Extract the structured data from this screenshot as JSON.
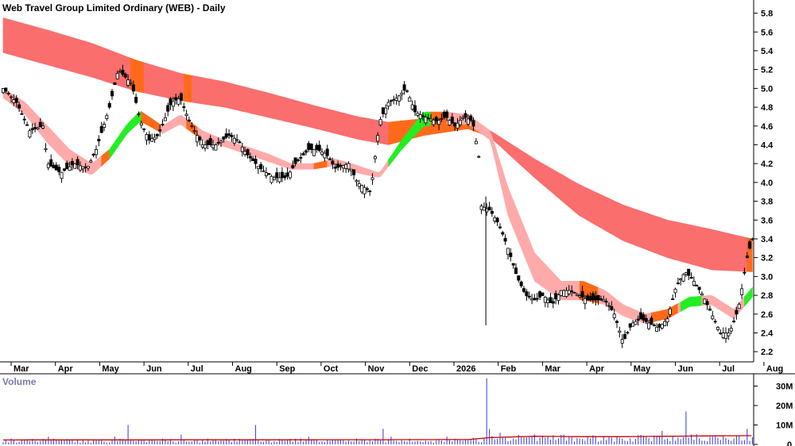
{
  "title": "Web Travel Group Limited Ordinary (WEB) - Daily",
  "volume_label": "Volume",
  "colors": {
    "candle": "#000000",
    "long_band": "#fa6e6e",
    "long_band_orange": "#ff6a1a",
    "short_band": "#ffaaaa",
    "short_band_orange": "#ff6a1a",
    "short_band_green": "#22ee22",
    "volume_bar": "#4848ee",
    "volume_avg": "#cc0000",
    "axis": "#000000"
  },
  "chart_data": {
    "type": "line",
    "price_axis": {
      "ticks": [
        "2.2",
        "2.4",
        "2.6",
        "2.8",
        "3.0",
        "3.2",
        "3.4",
        "3.6",
        "3.8",
        "4.0",
        "4.2",
        "4.4",
        "4.6",
        "4.8",
        "5.0",
        "5.2",
        "5.4",
        "5.6",
        "5.8"
      ],
      "ylim": [
        2.1,
        5.9
      ]
    },
    "volume_axis": {
      "ticks": [
        "0",
        "10M",
        "20M",
        "30M"
      ],
      "ylim": [
        0,
        35
      ]
    },
    "x_labels": [
      "Mar",
      "Apr",
      "May",
      "Jun",
      "Jul",
      "Aug",
      "Sep",
      "Oct",
      "Nov",
      "Dec",
      "2026",
      "Feb",
      "Mar",
      "Apr",
      "May",
      "Jun",
      "Jul",
      "Aug"
    ],
    "x_label_index": [
      0,
      1,
      2,
      3,
      4,
      5,
      6,
      7,
      8,
      9,
      10,
      11,
      12,
      13,
      14,
      15,
      16,
      17
    ],
    "price_close": [
      [
        0,
        5.0
      ],
      [
        0.3,
        4.85
      ],
      [
        0.6,
        4.55
      ],
      [
        0.9,
        4.6
      ],
      [
        1.0,
        4.2
      ],
      [
        1.3,
        4.1
      ],
      [
        1.6,
        4.2
      ],
      [
        1.9,
        4.15
      ],
      [
        2.1,
        4.35
      ],
      [
        2.4,
        4.8
      ],
      [
        2.6,
        5.2
      ],
      [
        2.9,
        5.05
      ],
      [
        3.1,
        4.65
      ],
      [
        3.3,
        4.45
      ],
      [
        3.5,
        4.5
      ],
      [
        3.8,
        4.85
      ],
      [
        4.0,
        4.9
      ],
      [
        4.2,
        4.65
      ],
      [
        4.5,
        4.4
      ],
      [
        4.8,
        4.4
      ],
      [
        5.1,
        4.5
      ],
      [
        5.3,
        4.45
      ],
      [
        5.5,
        4.3
      ],
      [
        5.8,
        4.15
      ],
      [
        6.1,
        4.05
      ],
      [
        6.4,
        4.05
      ],
      [
        6.6,
        4.2
      ],
      [
        6.9,
        4.35
      ],
      [
        7.1,
        4.35
      ],
      [
        7.3,
        4.3
      ],
      [
        7.5,
        4.15
      ],
      [
        7.8,
        4.2
      ],
      [
        8.0,
        4.0
      ],
      [
        8.3,
        3.9
      ],
      [
        8.5,
        4.65
      ],
      [
        8.7,
        4.85
      ],
      [
        8.9,
        4.9
      ],
      [
        9.1,
        5.0
      ],
      [
        9.3,
        4.75
      ],
      [
        9.5,
        4.7
      ],
      [
        9.8,
        4.65
      ],
      [
        10.0,
        4.7
      ],
      [
        10.2,
        4.6
      ],
      [
        10.4,
        4.7
      ],
      [
        10.6,
        4.65
      ],
      [
        10.75,
        4.25
      ],
      [
        10.8,
        3.75
      ],
      [
        11.0,
        3.7
      ],
      [
        11.2,
        3.55
      ],
      [
        11.4,
        3.3
      ],
      [
        11.6,
        3.0
      ],
      [
        11.8,
        2.8
      ],
      [
        12.0,
        2.75
      ],
      [
        12.2,
        2.8
      ],
      [
        12.4,
        2.7
      ],
      [
        12.6,
        2.85
      ],
      [
        12.8,
        2.85
      ],
      [
        13.0,
        2.8
      ],
      [
        13.2,
        2.75
      ],
      [
        13.4,
        2.75
      ],
      [
        13.6,
        2.75
      ],
      [
        13.8,
        2.6
      ],
      [
        14.0,
        2.3
      ],
      [
        14.2,
        2.5
      ],
      [
        14.4,
        2.55
      ],
      [
        14.6,
        2.5
      ],
      [
        14.8,
        2.45
      ],
      [
        15.0,
        2.55
      ],
      [
        15.2,
        2.9
      ],
      [
        15.4,
        3.05
      ],
      [
        15.6,
        2.95
      ],
      [
        15.8,
        2.8
      ],
      [
        16.0,
        2.6
      ],
      [
        16.2,
        2.4
      ],
      [
        16.4,
        2.4
      ],
      [
        16.6,
        2.65
      ],
      [
        16.8,
        3.2
      ],
      [
        16.95,
        3.45
      ]
    ],
    "long_band_upper": [
      [
        0,
        5.75
      ],
      [
        1.0,
        5.62
      ],
      [
        2.0,
        5.48
      ],
      [
        3.0,
        5.3
      ],
      [
        4.0,
        5.16
      ],
      [
        5.0,
        5.07
      ],
      [
        6.0,
        4.95
      ],
      [
        7.0,
        4.82
      ],
      [
        8.0,
        4.7
      ],
      [
        8.7,
        4.64
      ],
      [
        9.5,
        4.68
      ],
      [
        10.5,
        4.66
      ],
      [
        11.0,
        4.55
      ],
      [
        12.0,
        4.25
      ],
      [
        13.0,
        3.98
      ],
      [
        14.0,
        3.76
      ],
      [
        15.0,
        3.6
      ],
      [
        16.0,
        3.5
      ],
      [
        16.9,
        3.4
      ]
    ],
    "long_band_lower": [
      [
        0,
        5.38
      ],
      [
        1.0,
        5.25
      ],
      [
        2.0,
        5.12
      ],
      [
        3.0,
        4.97
      ],
      [
        4.0,
        4.87
      ],
      [
        5.0,
        4.8
      ],
      [
        6.0,
        4.69
      ],
      [
        7.0,
        4.58
      ],
      [
        8.0,
        4.46
      ],
      [
        8.7,
        4.4
      ],
      [
        9.5,
        4.5
      ],
      [
        10.5,
        4.57
      ],
      [
        11.0,
        4.48
      ],
      [
        12.0,
        4.05
      ],
      [
        13.0,
        3.65
      ],
      [
        14.0,
        3.38
      ],
      [
        15.0,
        3.2
      ],
      [
        16.0,
        3.07
      ],
      [
        16.9,
        3.05
      ]
    ],
    "short_band_upper": [
      [
        0,
        5.0
      ],
      [
        0.5,
        4.85
      ],
      [
        1.0,
        4.6
      ],
      [
        1.5,
        4.35
      ],
      [
        2.0,
        4.2
      ],
      [
        2.4,
        4.35
      ],
      [
        2.8,
        4.62
      ],
      [
        3.1,
        4.76
      ],
      [
        3.6,
        4.6
      ],
      [
        4.0,
        4.72
      ],
      [
        4.5,
        4.55
      ],
      [
        5.0,
        4.45
      ],
      [
        5.5,
        4.38
      ],
      [
        6.0,
        4.3
      ],
      [
        6.5,
        4.2
      ],
      [
        7.0,
        4.2
      ],
      [
        7.5,
        4.25
      ],
      [
        8.0,
        4.18
      ],
      [
        8.5,
        4.1
      ],
      [
        9.0,
        4.45
      ],
      [
        9.5,
        4.75
      ],
      [
        10.0,
        4.75
      ],
      [
        10.5,
        4.72
      ],
      [
        11.0,
        4.55
      ],
      [
        11.4,
        3.95
      ],
      [
        12.0,
        3.25
      ],
      [
        12.6,
        2.95
      ],
      [
        13.1,
        2.95
      ],
      [
        13.6,
        2.85
      ],
      [
        14.0,
        2.7
      ],
      [
        14.5,
        2.6
      ],
      [
        15.0,
        2.65
      ],
      [
        15.5,
        2.78
      ],
      [
        16.0,
        2.8
      ],
      [
        16.5,
        2.65
      ],
      [
        16.95,
        2.9
      ]
    ],
    "short_band_lower": [
      [
        0,
        4.9
      ],
      [
        0.5,
        4.72
      ],
      [
        1.0,
        4.42
      ],
      [
        1.5,
        4.18
      ],
      [
        2.0,
        4.08
      ],
      [
        2.4,
        4.25
      ],
      [
        2.8,
        4.52
      ],
      [
        3.1,
        4.65
      ],
      [
        3.6,
        4.52
      ],
      [
        4.0,
        4.62
      ],
      [
        4.5,
        4.45
      ],
      [
        5.0,
        4.38
      ],
      [
        5.5,
        4.3
      ],
      [
        6.0,
        4.22
      ],
      [
        6.5,
        4.14
      ],
      [
        7.0,
        4.14
      ],
      [
        7.5,
        4.18
      ],
      [
        8.0,
        4.1
      ],
      [
        8.5,
        4.05
      ],
      [
        9.0,
        4.35
      ],
      [
        9.5,
        4.6
      ],
      [
        10.0,
        4.62
      ],
      [
        10.5,
        4.62
      ],
      [
        11.0,
        4.45
      ],
      [
        11.4,
        3.65
      ],
      [
        12.0,
        2.95
      ],
      [
        12.6,
        2.75
      ],
      [
        13.1,
        2.75
      ],
      [
        13.6,
        2.7
      ],
      [
        14.0,
        2.58
      ],
      [
        14.5,
        2.5
      ],
      [
        15.0,
        2.55
      ],
      [
        15.5,
        2.68
      ],
      [
        16.0,
        2.7
      ],
      [
        16.5,
        2.55
      ],
      [
        16.95,
        2.8
      ]
    ],
    "volume_avg": [
      [
        0,
        2.3
      ],
      [
        8.0,
        2.4
      ],
      [
        10.5,
        2.5
      ],
      [
        11.0,
        3.5
      ],
      [
        12.0,
        4.2
      ],
      [
        13.0,
        4.0
      ],
      [
        14.0,
        4.0
      ],
      [
        15.0,
        4.2
      ],
      [
        16.0,
        4.4
      ],
      [
        16.95,
        4.5
      ]
    ],
    "volume_spikes": [
      [
        0.2,
        3
      ],
      [
        1.0,
        4
      ],
      [
        2.5,
        4
      ],
      [
        2.85,
        10
      ],
      [
        4.0,
        5
      ],
      [
        4.6,
        3
      ],
      [
        5.7,
        10
      ],
      [
        6.9,
        4
      ],
      [
        8.0,
        3
      ],
      [
        8.6,
        8
      ],
      [
        8.75,
        4
      ],
      [
        10.0,
        4
      ],
      [
        10.9,
        22
      ],
      [
        10.95,
        34
      ],
      [
        11.0,
        8
      ],
      [
        11.2,
        6
      ],
      [
        12.2,
        4
      ],
      [
        12.6,
        5
      ],
      [
        13.0,
        3
      ],
      [
        13.4,
        4
      ],
      [
        14.0,
        3
      ],
      [
        14.9,
        7
      ],
      [
        15.4,
        17
      ],
      [
        16.0,
        4
      ],
      [
        16.8,
        8
      ]
    ]
  }
}
